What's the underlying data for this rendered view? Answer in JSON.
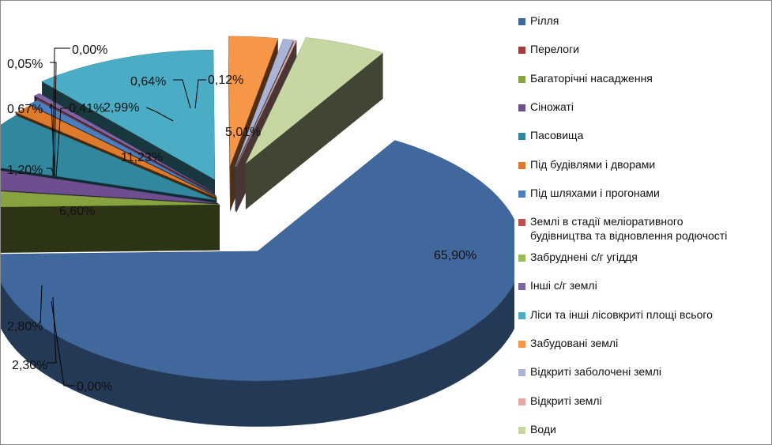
{
  "chart_data": {
    "type": "pie",
    "categories": [
      "Рілля",
      "Перелоги",
      "Багаторічні насадження",
      "Сіножаті",
      "Пасовища",
      "Під будівлями і дворами",
      "Під шляхами і прогонами",
      "Землі в стадії меліоративного будівництва та відновлення родючості",
      "Забруднені с/г угіддя",
      "Інші с/г землі",
      "Ліси та інші лісовкриті площі всього",
      "Забудовані землі",
      "Відкриті заболочені землі",
      "Відкриті землі",
      "Води"
    ],
    "legend_lines": [
      [
        "Рілля"
      ],
      [
        "Перелоги"
      ],
      [
        "Багаторічні насадження"
      ],
      [
        "Сіножаті"
      ],
      [
        "Пасовища"
      ],
      [
        "Під будівлями і дворами"
      ],
      [
        "Під шляхами і прогонами"
      ],
      [
        "Землі в стадії меліоративного",
        "будівництва та відновлення родючості"
      ],
      [
        "Забруднені с/г угіддя"
      ],
      [
        "Інші с/г землі"
      ],
      [
        "Ліси та інші лісовкриті площі всього"
      ],
      [
        "Забудовані землі"
      ],
      [
        "Відкриті заболочені землі"
      ],
      [
        "Відкриті землі"
      ],
      [
        "Води"
      ]
    ],
    "values": [
      65.9,
      0.0,
      2.3,
      2.8,
      6.6,
      1.2,
      0.67,
      0.05,
      0.0,
      0.41,
      11.23,
      2.99,
      0.64,
      0.12,
      5.01
    ],
    "labels": [
      "65,90%",
      "0,00%",
      "2,30%",
      "2,80%",
      "6,60%",
      "1,20%",
      "0,67%",
      "0,05%",
      "0,00%",
      "0,41%",
      "11,23%",
      "2,99%",
      "0,64%",
      "0,12%",
      "5,01%"
    ],
    "colors": [
      "#41689c",
      "#a33b38",
      "#86a33f",
      "#6d4e8e",
      "#31879e",
      "#dd7a2c",
      "#4b7fc0",
      "#c0504d",
      "#9bbb59",
      "#8064a2",
      "#4bacc6",
      "#f79646",
      "#aab4d6",
      "#e4a9a7",
      "#c7d7a2"
    ],
    "legend_position": "right",
    "exploded": true,
    "three_d": true
  }
}
